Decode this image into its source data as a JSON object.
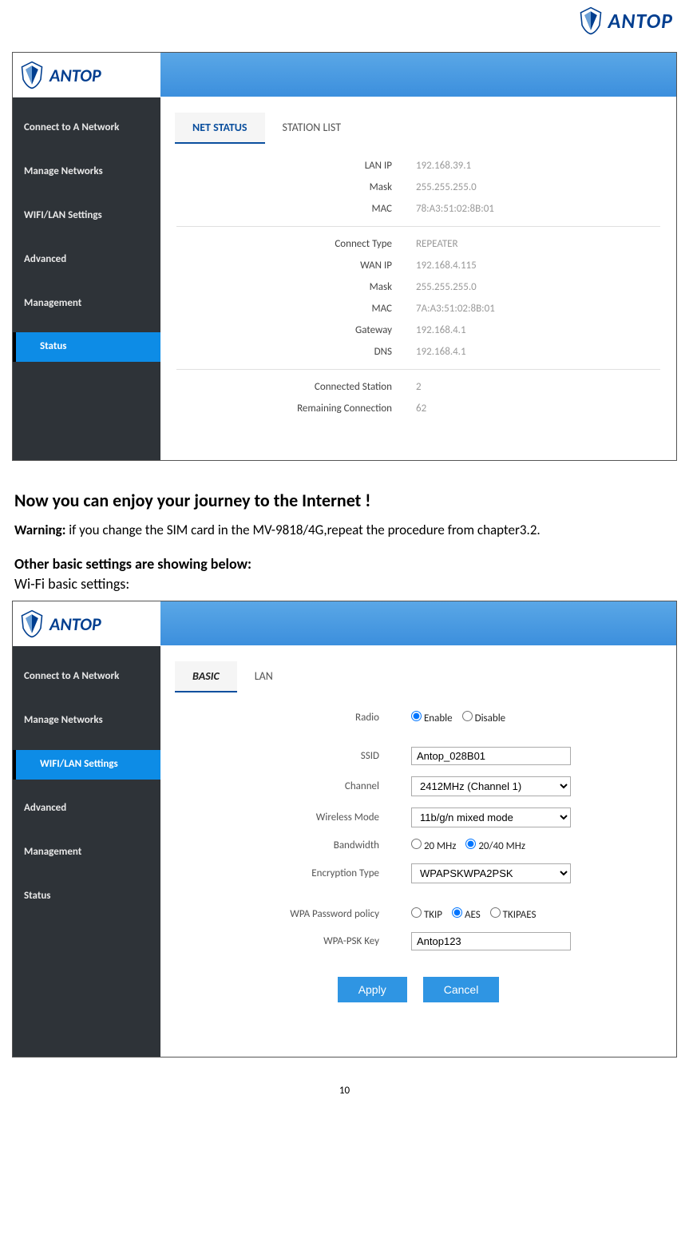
{
  "brand": "ANTOP",
  "page_number": "10",
  "doc": {
    "heading1": "Now you can enjoy your journey to the Internet !",
    "warning_label": "Warning:",
    "warning_text": " if you change the SIM card in the MV-9818/4G,repeat the procedure from chapter3.2.",
    "other_heading": "Other basic settings are showing below:",
    "wifi_settings_label": "Wi-Fi basic settings:"
  },
  "screenshot1": {
    "nav": [
      "Connect to A Network",
      "Manage Networks",
      "WIFI/LAN Settings",
      "Advanced",
      "Management",
      "Status"
    ],
    "active_index": 5,
    "tabs": [
      "NET STATUS",
      "STATION LIST"
    ],
    "active_tab": 0,
    "section1": [
      {
        "label": "LAN IP",
        "value": "192.168.39.1"
      },
      {
        "label": "Mask",
        "value": "255.255.255.0"
      },
      {
        "label": "MAC",
        "value": "78:A3:51:02:8B:01"
      }
    ],
    "section2": [
      {
        "label": "Connect Type",
        "value": "REPEATER"
      },
      {
        "label": "WAN IP",
        "value": "192.168.4.115"
      },
      {
        "label": "Mask",
        "value": "255.255.255.0"
      },
      {
        "label": "MAC",
        "value": "7A:A3:51:02:8B:01"
      },
      {
        "label": "Gateway",
        "value": "192.168.4.1"
      },
      {
        "label": "DNS",
        "value": "192.168.4.1"
      }
    ],
    "section3": [
      {
        "label": "Connected Station",
        "value": "2"
      },
      {
        "label": "Remaining Connection",
        "value": "62"
      }
    ]
  },
  "screenshot2": {
    "nav": [
      "Connect to A Network",
      "Manage Networks",
      "WIFI/LAN Settings",
      "Advanced",
      "Management",
      "Status"
    ],
    "active_index": 2,
    "tabs": [
      "BASIC",
      "LAN"
    ],
    "active_tab": 0,
    "radio_label": "Radio",
    "radio_options": [
      "Enable",
      "Disable"
    ],
    "radio_selected": 0,
    "ssid_label": "SSID",
    "ssid_value": "Antop_028B01",
    "channel_label": "Channel",
    "channel_value": "2412MHz (Channel 1)",
    "mode_label": "Wireless Mode",
    "mode_value": "11b/g/n mixed mode",
    "bandwidth_label": "Bandwidth",
    "bandwidth_options": [
      "20 MHz",
      "20/40 MHz"
    ],
    "bandwidth_selected": 1,
    "enc_label": "Encryption Type",
    "enc_value": "WPAPSKWPA2PSK",
    "wpa_policy_label": "WPA Password policy",
    "wpa_policy_options": [
      "TKIP",
      "AES",
      "TKIPAES"
    ],
    "wpa_policy_selected": 1,
    "wpa_key_label": "WPA-PSK Key",
    "wpa_key_value": "Antop123",
    "apply_button": "Apply",
    "cancel_button": "Cancel"
  },
  "colors": {
    "brand_blue": "#003e8f",
    "active_blue": "#0d8ce6",
    "button_blue": "#2f95e3",
    "sidebar_bg": "#2e3338",
    "topbar_grad_from": "#5aa7e6",
    "topbar_grad_to": "#3c8fdd",
    "val_gray": "#999999"
  }
}
